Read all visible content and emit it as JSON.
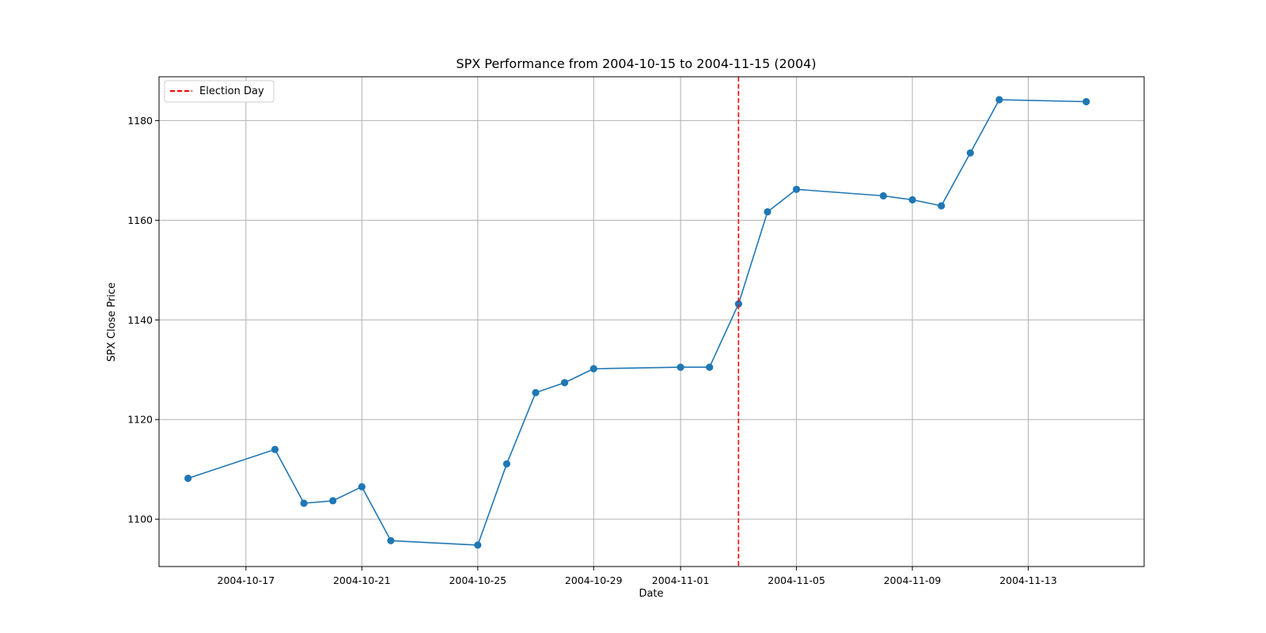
{
  "chart_data": {
    "type": "line",
    "title": "SPX Performance from 2004-10-15 to 2004-11-15 (2004)",
    "xlabel": "Date",
    "ylabel": "SPX Close Price",
    "xlim": [
      "2004-10-14",
      "2004-11-17"
    ],
    "ylim": [
      1090.5,
      1188.8
    ],
    "x_ticks": [
      "2004-10-17",
      "2004-10-21",
      "2004-10-25",
      "2004-10-29",
      "2004-11-01",
      "2004-11-05",
      "2004-11-09",
      "2004-11-13"
    ],
    "y_ticks": [
      1100,
      1120,
      1140,
      1160,
      1180
    ],
    "grid": true,
    "legend_position": "top-left",
    "series": [
      {
        "color": "#1f77b4",
        "x": [
          "2004-10-15",
          "2004-10-18",
          "2004-10-19",
          "2004-10-20",
          "2004-10-21",
          "2004-10-22",
          "2004-10-25",
          "2004-10-26",
          "2004-10-27",
          "2004-10-28",
          "2004-10-29",
          "2004-11-01",
          "2004-11-02",
          "2004-11-03",
          "2004-11-04",
          "2004-11-05",
          "2004-11-08",
          "2004-11-09",
          "2004-11-10",
          "2004-11-11",
          "2004-11-12",
          "2004-11-15"
        ],
        "values": [
          1108.2,
          1114.0,
          1103.2,
          1103.7,
          1106.5,
          1095.7,
          1094.8,
          1111.1,
          1125.4,
          1127.4,
          1130.2,
          1130.5,
          1130.5,
          1143.2,
          1161.7,
          1166.2,
          1164.9,
          1164.1,
          1162.9,
          1173.5,
          1184.2,
          1183.8
        ]
      }
    ],
    "annotations": [
      {
        "type": "vline",
        "x": "2004-11-03",
        "label": "Election Day",
        "color": "#ff0000",
        "style": "dashed"
      }
    ]
  }
}
